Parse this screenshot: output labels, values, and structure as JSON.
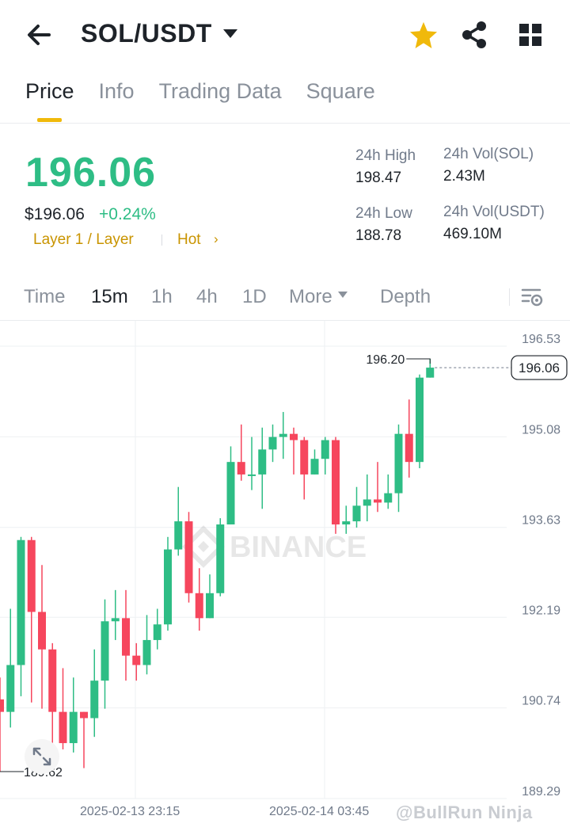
{
  "header": {
    "pair": "SOL/USDT",
    "icons": [
      "back-arrow-icon",
      "star-icon",
      "share-icon",
      "grid-icon"
    ],
    "star_color": "#f0b90b"
  },
  "tabs": [
    "Price",
    "Info",
    "Trading Data",
    "Square"
  ],
  "active_tab": "Price",
  "price": {
    "last": "196.06",
    "usd": "$196.06",
    "change": "+0.24%",
    "tag_layer": "Layer 1 / Layer",
    "tag_hot": "Hot",
    "tag_hot_arrow": "›"
  },
  "stats": {
    "high_label": "24h High",
    "high_value": "198.47",
    "low_label": "24h Low",
    "low_value": "188.78",
    "vol_sol_label": "24h Vol(SOL)",
    "vol_sol_value": "2.43M",
    "vol_usdt_label": "24h Vol(USDT)",
    "vol_usdt_value": "469.10M"
  },
  "timeframes": {
    "time": "Time",
    "m15": "15m",
    "h1": "1h",
    "h4": "4h",
    "d1": "1D",
    "more": "More",
    "depth": "Depth",
    "active": "15m"
  },
  "colors": {
    "up": "#2ebd85",
    "down": "#f6465d",
    "accent": "#f0b90b",
    "tag": "#c99400"
  },
  "chart_data": {
    "type": "candlestick",
    "watermark": "BINANCE",
    "y_ticks": [
      "196.53",
      "195.08",
      "193.63",
      "192.19",
      "190.74",
      "189.29"
    ],
    "ylim": [
      189.29,
      196.53
    ],
    "x_ticks": [
      "2025-02-13 23:15",
      "2025-02-14 03:45"
    ],
    "high_marker": "196.20",
    "low_marker": "189.62",
    "last_price_label": "196.06",
    "candles": [
      {
        "o": 190.75,
        "h": 191.1,
        "c": 190.55,
        "l": 189.6
      },
      {
        "o": 190.55,
        "h": 192.2,
        "c": 191.3,
        "l": 190.3
      },
      {
        "o": 191.3,
        "h": 193.35,
        "c": 193.3,
        "l": 190.8
      },
      {
        "o": 193.3,
        "h": 193.35,
        "c": 192.15,
        "l": 190.7
      },
      {
        "o": 192.15,
        "h": 192.9,
        "c": 191.55,
        "l": 190.6
      },
      {
        "o": 191.55,
        "h": 191.65,
        "c": 190.55,
        "l": 189.8
      },
      {
        "o": 190.55,
        "h": 191.25,
        "c": 190.05,
        "l": 189.95
      },
      {
        "o": 190.05,
        "h": 191.1,
        "c": 190.55,
        "l": 189.9
      },
      {
        "o": 190.55,
        "h": 190.55,
        "c": 190.45,
        "l": 189.65
      },
      {
        "o": 190.45,
        "h": 191.55,
        "c": 191.05,
        "l": 190.15
      },
      {
        "o": 191.05,
        "h": 192.35,
        "c": 192.0,
        "l": 190.6
      },
      {
        "o": 192.0,
        "h": 192.5,
        "c": 192.05,
        "l": 191.7
      },
      {
        "o": 192.05,
        "h": 192.5,
        "c": 191.45,
        "l": 191.05
      },
      {
        "o": 191.45,
        "h": 191.65,
        "c": 191.3,
        "l": 191.05
      },
      {
        "o": 191.3,
        "h": 192.1,
        "c": 191.7,
        "l": 191.15
      },
      {
        "o": 191.7,
        "h": 192.2,
        "c": 191.95,
        "l": 191.55
      },
      {
        "o": 191.95,
        "h": 193.35,
        "c": 193.15,
        "l": 191.85
      },
      {
        "o": 193.15,
        "h": 194.15,
        "c": 193.6,
        "l": 193.05
      },
      {
        "o": 193.6,
        "h": 193.75,
        "c": 192.45,
        "l": 192.3
      },
      {
        "o": 192.45,
        "h": 192.85,
        "c": 192.05,
        "l": 191.85
      },
      {
        "o": 192.05,
        "h": 192.75,
        "c": 192.45,
        "l": 192.05
      },
      {
        "o": 192.45,
        "h": 193.65,
        "c": 193.55,
        "l": 192.4
      },
      {
        "o": 193.55,
        "h": 194.8,
        "c": 194.55,
        "l": 193.55
      },
      {
        "o": 194.55,
        "h": 195.15,
        "c": 194.35,
        "l": 194.25
      },
      {
        "o": 194.35,
        "h": 194.95,
        "c": 194.35,
        "l": 194.1
      },
      {
        "o": 194.35,
        "h": 195.1,
        "c": 194.75,
        "l": 193.8
      },
      {
        "o": 194.75,
        "h": 195.15,
        "c": 194.95,
        "l": 194.55
      },
      {
        "o": 194.95,
        "h": 195.35,
        "c": 195.0,
        "l": 194.6
      },
      {
        "o": 195.0,
        "h": 195.1,
        "c": 194.9,
        "l": 194.35
      },
      {
        "o": 194.9,
        "h": 194.95,
        "c": 194.35,
        "l": 193.95
      },
      {
        "o": 194.35,
        "h": 194.75,
        "c": 194.6,
        "l": 194.35
      },
      {
        "o": 194.6,
        "h": 194.95,
        "c": 194.9,
        "l": 194.35
      },
      {
        "o": 194.9,
        "h": 194.95,
        "c": 193.55,
        "l": 193.4
      },
      {
        "o": 193.55,
        "h": 193.85,
        "c": 193.6,
        "l": 193.4
      },
      {
        "o": 193.6,
        "h": 194.15,
        "c": 193.85,
        "l": 193.5
      },
      {
        "o": 193.85,
        "h": 194.35,
        "c": 193.95,
        "l": 193.6
      },
      {
        "o": 193.95,
        "h": 194.55,
        "c": 193.9,
        "l": 193.75
      },
      {
        "o": 193.9,
        "h": 194.35,
        "c": 194.05,
        "l": 193.8
      },
      {
        "o": 194.05,
        "h": 195.15,
        "c": 195.0,
        "l": 193.75
      },
      {
        "o": 195.0,
        "h": 195.55,
        "c": 194.55,
        "l": 194.3
      },
      {
        "o": 194.55,
        "h": 195.95,
        "c": 195.9,
        "l": 194.45
      },
      {
        "o": 195.9,
        "h": 196.2,
        "c": 196.06,
        "l": 195.9
      }
    ]
  },
  "footer": {
    "credit": "@BullRun Ninja"
  }
}
